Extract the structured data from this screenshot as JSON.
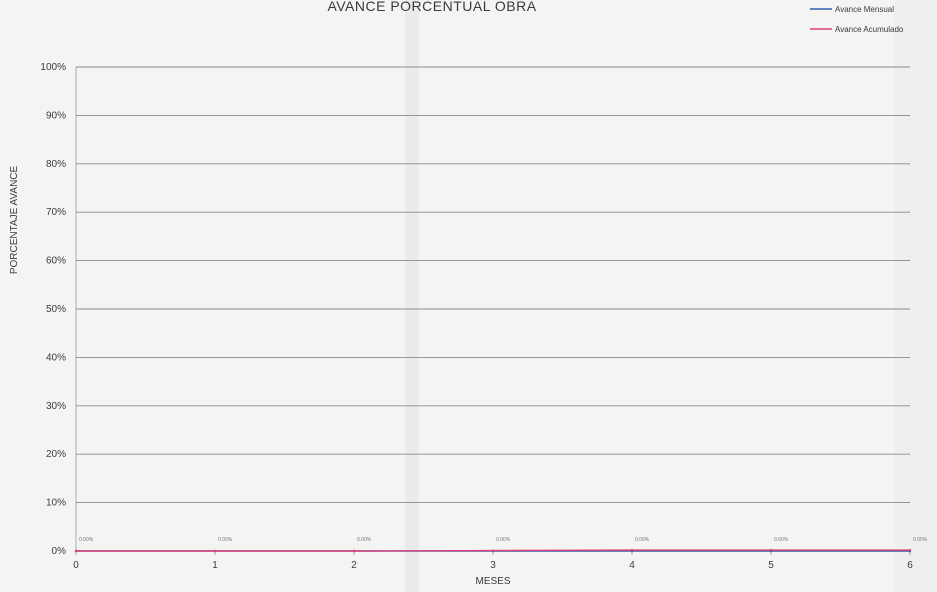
{
  "chart_data": {
    "type": "line",
    "title": "AVANCE PORCENTUAL OBRA",
    "xlabel": "MESES",
    "ylabel": "PORCENTAJE AVANCE",
    "x": [
      0,
      1,
      2,
      3,
      4,
      5,
      6
    ],
    "xlim": [
      0,
      6
    ],
    "ylim": [
      0,
      1
    ],
    "y_ticks": [
      "0%",
      "10%",
      "20%",
      "30%",
      "40%",
      "50%",
      "60%",
      "70%",
      "80%",
      "90%",
      "100%"
    ],
    "x_ticks": [
      "0",
      "1",
      "2",
      "3",
      "4",
      "5",
      "6"
    ],
    "series": [
      {
        "name": "Avance Mensual",
        "color": "#2f5fa8",
        "values": [
          0,
          0,
          0,
          0,
          0,
          0,
          0
        ]
      },
      {
        "name": "Avance Acumulado",
        "color": "#e0407a",
        "values": [
          0,
          0,
          0,
          0.001,
          0.002,
          0.002,
          0.002
        ]
      }
    ],
    "data_labels": [
      "0.00%",
      "0.00%",
      "0.00%",
      "0.00%",
      "0.00%",
      "0.00%",
      "0.00%"
    ],
    "legend_position": "top-right",
    "grid": true
  }
}
